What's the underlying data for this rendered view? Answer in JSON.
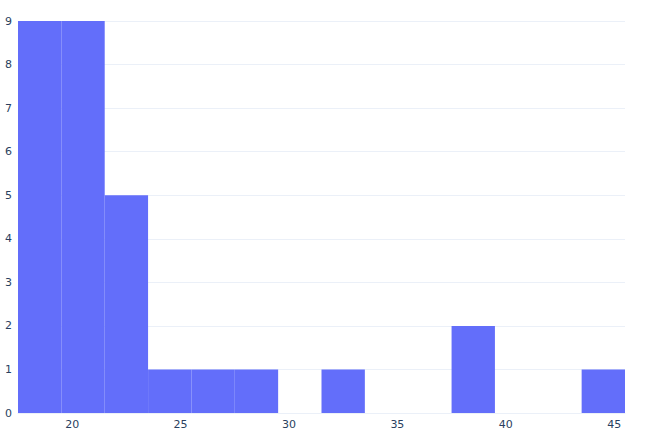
{
  "chart_data": {
    "type": "histogram",
    "bins": [
      17.5,
      19.5,
      21.5,
      23.5,
      25.5,
      27.5,
      29.5,
      31.5,
      33.5,
      35.5,
      37.5,
      39.5,
      41.5,
      43.5,
      45.5
    ],
    "values": [
      9,
      9,
      5,
      1,
      1,
      1,
      0,
      1,
      0,
      0,
      2,
      0,
      0,
      1
    ],
    "color": "#636efa",
    "xlim": [
      17.5,
      45.5
    ],
    "xticks": [
      20,
      25,
      30,
      35,
      40,
      45
    ],
    "ylim": [
      0,
      9
    ],
    "yticks": [
      0,
      1,
      2,
      3,
      4,
      5,
      6,
      7,
      8,
      9
    ],
    "grid": true
  }
}
